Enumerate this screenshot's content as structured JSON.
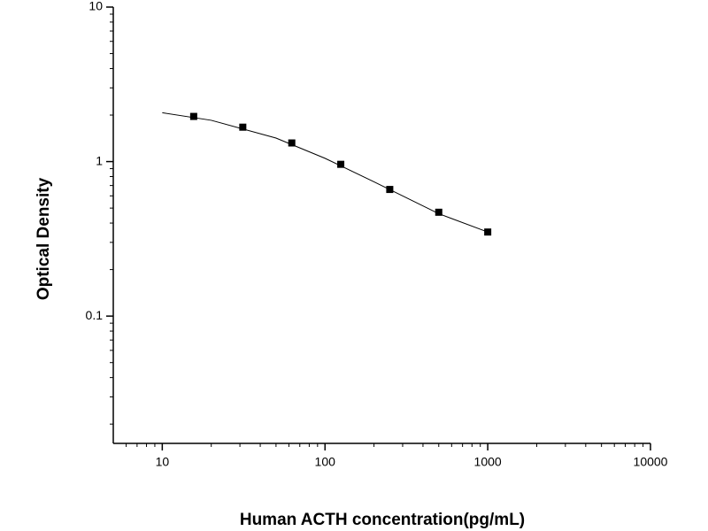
{
  "chart_data": {
    "type": "scatter",
    "x_label": "Human ACTH concentration(pg/mL)",
    "y_label": "Optical Density",
    "xscale": "log",
    "yscale": "log",
    "xlim": [
      5,
      10000
    ],
    "ylim": [
      0.015,
      10
    ],
    "xticks": [
      10,
      100,
      1000,
      10000
    ],
    "yticks": [
      0.1,
      1,
      10
    ],
    "xminorticks": [
      6,
      7,
      8,
      9,
      20,
      30,
      40,
      50,
      60,
      70,
      80,
      90,
      200,
      300,
      400,
      500,
      600,
      700,
      800,
      900,
      2000,
      3000,
      4000,
      5000,
      6000,
      7000,
      8000,
      9000
    ],
    "yminorticks": [
      0.02,
      0.03,
      0.04,
      0.05,
      0.06,
      0.07,
      0.08,
      0.09,
      0.2,
      0.3,
      0.4,
      0.5,
      0.6,
      0.7,
      0.8,
      0.9,
      2,
      3,
      4,
      5,
      6,
      7,
      8,
      9
    ],
    "series": [
      {
        "style": "markers",
        "color": "#000000",
        "x": [
          15.6,
          31.25,
          62.5,
          125,
          250,
          500,
          1000
        ],
        "values": [
          1.96,
          1.67,
          1.32,
          0.96,
          0.66,
          0.47,
          0.35
        ]
      },
      {
        "style": "line",
        "color": "#000000",
        "x": [
          10,
          20,
          50,
          100,
          200,
          500,
          1000
        ],
        "values": [
          2.07,
          1.85,
          1.42,
          1.05,
          0.74,
          0.46,
          0.35
        ]
      }
    ]
  }
}
